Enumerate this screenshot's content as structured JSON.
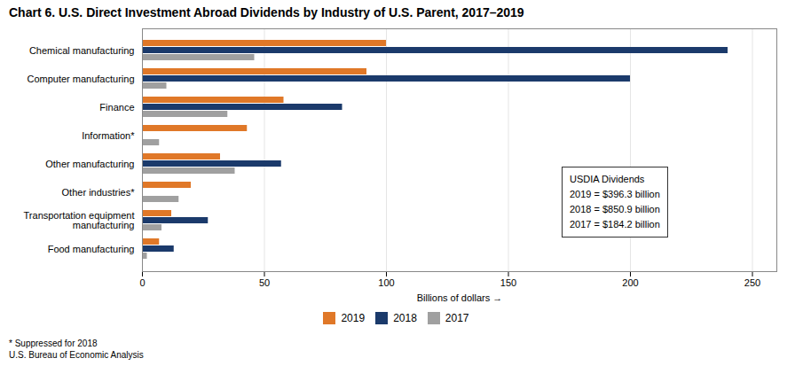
{
  "chart_data": {
    "type": "bar",
    "orientation": "horizontal",
    "title": "Chart 6. U.S. Direct Investment Abroad Dividends by Industry of U.S. Parent, 2017–2019",
    "categories": [
      "Chemical manufacturing",
      "Computer manufacturing",
      "Finance",
      "Information*",
      "Other manufacturing",
      "Other industries*",
      "Transportation equipment\nmanufacturing",
      "Food manufacturing"
    ],
    "series": [
      {
        "name": "2019",
        "color": "#E07828",
        "values": [
          100,
          92,
          58,
          43,
          32,
          20,
          12,
          7
        ]
      },
      {
        "name": "2018",
        "color": "#1B3A6B",
        "values": [
          240,
          200,
          82,
          0,
          57,
          0,
          27,
          13
        ]
      },
      {
        "name": "2017",
        "color": "#A0A0A0",
        "values": [
          46,
          10,
          35,
          7,
          38,
          15,
          8,
          2
        ]
      }
    ],
    "xlabel": "Billions of dollars",
    "xlim": [
      0,
      260
    ],
    "xticks": [
      0,
      50,
      100,
      150,
      200,
      250
    ],
    "grid": true,
    "legend": "bottom",
    "annotations": [
      "USDIA Dividends",
      "2019 = $396.3 billion",
      "2018 = $850.9 billion",
      "2017 = $184.2 billion"
    ],
    "footnotes": [
      "* Suppressed for 2018",
      "U.S. Bureau of Economic Analysis"
    ]
  }
}
